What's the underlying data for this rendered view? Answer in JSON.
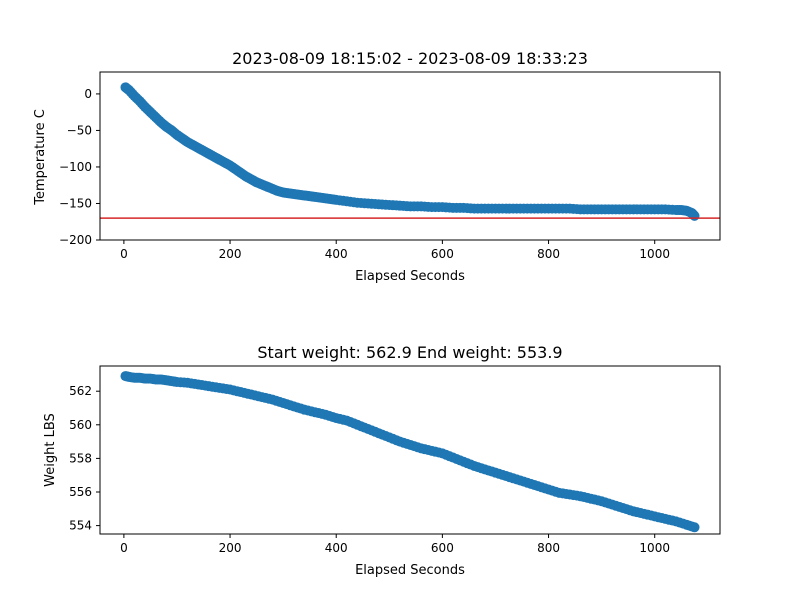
{
  "chart_data": [
    {
      "type": "scatter",
      "title": "2023-08-09 18:15:02 - 2023-08-09 18:33:23",
      "xlabel": "Elapsed Seconds",
      "ylabel": "Temperature C",
      "xlim": [
        -45,
        1123
      ],
      "ylim": [
        -200,
        30
      ],
      "xticks": [
        0,
        200,
        400,
        600,
        800,
        1000
      ],
      "yticks": [
        0,
        -50,
        -100,
        -150,
        -200
      ],
      "grid": false,
      "marker_color": "#1f77b4",
      "reference_line": {
        "y": -170,
        "color": "#d62728"
      },
      "series": [
        {
          "x": [
            3,
            10,
            20,
            30,
            40,
            50,
            60,
            70,
            80,
            90,
            100,
            110,
            120,
            130,
            140,
            150,
            160,
            170,
            180,
            190,
            200,
            210,
            220,
            230,
            240,
            250,
            260,
            270,
            280,
            290,
            300,
            310,
            320,
            330,
            340,
            350,
            360,
            370,
            380,
            390,
            400,
            420,
            440,
            460,
            480,
            500,
            520,
            540,
            560,
            580,
            600,
            620,
            640,
            660,
            680,
            700,
            720,
            740,
            760,
            780,
            800,
            820,
            840,
            860,
            880,
            900,
            920,
            940,
            960,
            980,
            1000,
            1020,
            1040,
            1050,
            1060,
            1070,
            1075
          ],
          "y": [
            9,
            5,
            -3,
            -10,
            -18,
            -25,
            -32,
            -39,
            -45,
            -50,
            -56,
            -61,
            -66,
            -70,
            -74,
            -78,
            -82,
            -86,
            -90,
            -94,
            -98,
            -103,
            -108,
            -113,
            -117,
            -121,
            -124,
            -127,
            -130,
            -133,
            -135,
            -136,
            -137,
            -138,
            -139,
            -140,
            -141,
            -142,
            -143,
            -144,
            -145,
            -147,
            -149,
            -150,
            -151,
            -152,
            -153,
            -154,
            -154,
            -155,
            -155,
            -156,
            -156,
            -157,
            -157,
            -157,
            -157,
            -157,
            -157,
            -157,
            -157,
            -157,
            -157,
            -158,
            -158,
            -158,
            -158,
            -158,
            -158,
            -158,
            -158,
            -158,
            -159,
            -159,
            -160,
            -163,
            -167
          ]
        }
      ]
    },
    {
      "type": "scatter",
      "title": "Start weight: 562.9 End weight: 553.9",
      "xlabel": "Elapsed Seconds",
      "ylabel": "Weight LBS",
      "xlim": [
        -45,
        1123
      ],
      "ylim": [
        553.5,
        563.5
      ],
      "xticks": [
        0,
        200,
        400,
        600,
        800,
        1000
      ],
      "yticks": [
        554,
        556,
        558,
        560,
        562
      ],
      "grid": false,
      "marker_color": "#1f77b4",
      "series": [
        {
          "x": [
            3,
            10,
            20,
            30,
            40,
            50,
            60,
            70,
            80,
            90,
            100,
            120,
            140,
            160,
            180,
            200,
            220,
            240,
            260,
            280,
            300,
            320,
            340,
            360,
            380,
            400,
            420,
            440,
            460,
            480,
            500,
            520,
            540,
            560,
            580,
            600,
            620,
            640,
            660,
            680,
            700,
            720,
            740,
            760,
            780,
            800,
            820,
            840,
            860,
            880,
            900,
            920,
            940,
            960,
            980,
            1000,
            1020,
            1040,
            1060,
            1075
          ],
          "y": [
            562.9,
            562.85,
            562.8,
            562.8,
            562.75,
            562.75,
            562.7,
            562.7,
            562.65,
            562.6,
            562.55,
            562.5,
            562.4,
            562.3,
            562.2,
            562.1,
            561.95,
            561.8,
            561.65,
            561.5,
            561.3,
            561.1,
            560.9,
            560.75,
            560.6,
            560.4,
            560.25,
            560.0,
            559.75,
            559.5,
            559.25,
            559.0,
            558.8,
            558.6,
            558.45,
            558.3,
            558.05,
            557.8,
            557.55,
            557.35,
            557.15,
            556.95,
            556.75,
            556.55,
            556.35,
            556.15,
            555.95,
            555.85,
            555.75,
            555.6,
            555.45,
            555.25,
            555.05,
            554.85,
            554.7,
            554.55,
            554.4,
            554.25,
            554.05,
            553.9
          ]
        }
      ]
    }
  ]
}
